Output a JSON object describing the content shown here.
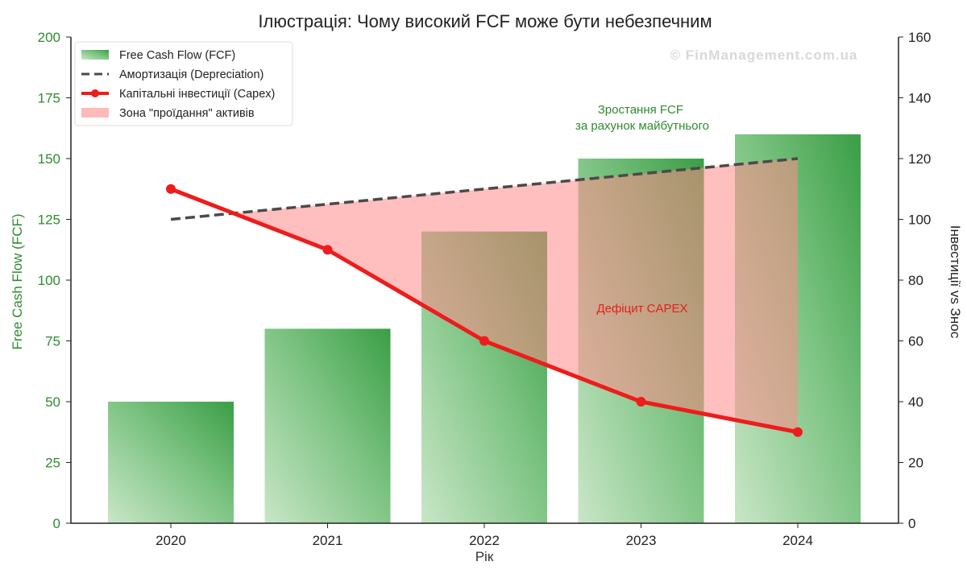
{
  "chart_data": {
    "type": "bar",
    "title": "Ілюстрація: Чому високий FCF може бути небезпечним",
    "watermark": "© FinManagement.com.ua",
    "xlabel": "Рік",
    "ylabel_left": "Free Cash Flow (FCF)",
    "ylabel_right": "Інвестиції vs Знос",
    "categories": [
      "2020",
      "2021",
      "2022",
      "2023",
      "2024"
    ],
    "ylim_left": [
      0,
      200
    ],
    "yticks_left": [
      0,
      25,
      50,
      75,
      100,
      125,
      150,
      175,
      200
    ],
    "ylim_right": [
      0,
      160
    ],
    "yticks_right": [
      0,
      20,
      40,
      60,
      80,
      100,
      120,
      140,
      160
    ],
    "grid": false,
    "legend_position": "top-left",
    "series": [
      {
        "name": "Free Cash Flow (FCF)",
        "type": "bar",
        "axis": "left",
        "values": [
          50,
          80,
          120,
          150,
          160
        ],
        "color": "#3a9e45"
      },
      {
        "name": "Амортизація (Depreciation)",
        "type": "line-dashed",
        "axis": "right",
        "values": [
          100,
          105,
          110,
          115,
          120
        ],
        "color": "#4a4a4a"
      },
      {
        "name": "Капітальні інвестиції (Capex)",
        "type": "line-marker",
        "axis": "right",
        "values": [
          110,
          90,
          60,
          40,
          30
        ],
        "color": "#ee1c1c"
      },
      {
        "name": "Зона \"проїдання\" активів",
        "type": "area-between",
        "axis": "right",
        "color": "#ff8a8a"
      }
    ],
    "annotations": [
      {
        "text": "Зростання FCF\nза рахунок майбутнього",
        "color": "#2e8b2e"
      },
      {
        "text": "Дефіцит CAPEX",
        "color": "#e02020"
      }
    ]
  }
}
